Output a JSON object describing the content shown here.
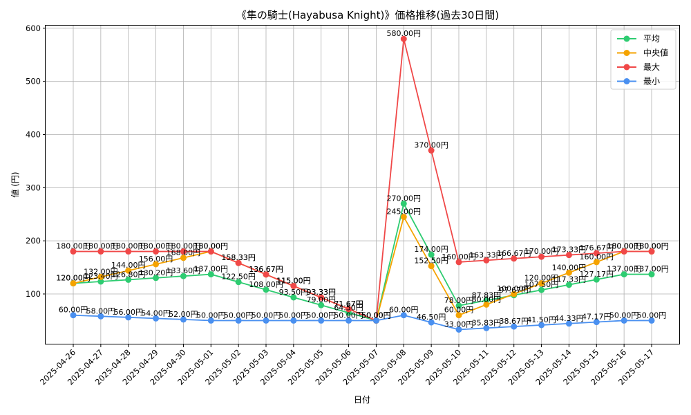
{
  "chart_data": {
    "type": "line",
    "title": "《隼の騎士(Hayabusa Knight)》価格推移(過去30日間)",
    "xlabel": "日付",
    "ylabel": "値 (円)",
    "ylim": [
      5,
      605
    ],
    "yticks": [
      100,
      200,
      300,
      400,
      500,
      600
    ],
    "grid": true,
    "legend_position": "top-right",
    "value_suffix": "円",
    "categories": [
      "2025-04-26",
      "2025-04-27",
      "2025-04-28",
      "2025-04-29",
      "2025-04-30",
      "2025-05-01",
      "2025-05-02",
      "2025-05-03",
      "2025-05-04",
      "2025-05-05",
      "2025-05-06",
      "2025-05-07",
      "2025-05-08",
      "2025-05-09",
      "2025-05-10",
      "2025-05-11",
      "2025-05-12",
      "2025-05-13",
      "2025-05-14",
      "2025-05-15",
      "2025-05-16",
      "2025-05-17"
    ],
    "series": [
      {
        "name": "平均",
        "color": "#2ecc71",
        "values": [
          120.0,
          123.4,
          126.8,
          130.2,
          133.6,
          137.0,
          122.5,
          108.0,
          93.5,
          79.0,
          64.5,
          50.0,
          270.0,
          174.0,
          78.0,
          87.83,
          97.67,
          107.5,
          117.33,
          127.17,
          137.0,
          137.0
        ]
      },
      {
        "name": "中央値",
        "color": "#f5a300",
        "values": [
          120.0,
          132.0,
          144.0,
          156.0,
          168.0,
          180.0,
          158.33,
          136.67,
          115.0,
          93.33,
          71.67,
          50.0,
          245.0,
          152.5,
          60.0,
          80.0,
          100.0,
          120.0,
          140.0,
          160.0,
          180.0,
          180.0
        ]
      },
      {
        "name": "最大",
        "color": "#f04848",
        "values": [
          180.0,
          180.0,
          180.0,
          180.0,
          180.0,
          180.0,
          158.33,
          136.67,
          115.0,
          93.33,
          71.67,
          50.0,
          580.0,
          370.0,
          160.0,
          163.33,
          166.67,
          170.0,
          173.33,
          176.67,
          180.0,
          180.0
        ]
      },
      {
        "name": "最小",
        "color": "#4a90f0",
        "values": [
          60.0,
          58.0,
          56.0,
          54.0,
          52.0,
          50.0,
          50.0,
          50.0,
          50.0,
          50.0,
          50.0,
          50.0,
          60.0,
          46.5,
          33.0,
          35.83,
          38.67,
          41.5,
          44.33,
          47.17,
          50.0,
          50.0
        ]
      }
    ]
  }
}
